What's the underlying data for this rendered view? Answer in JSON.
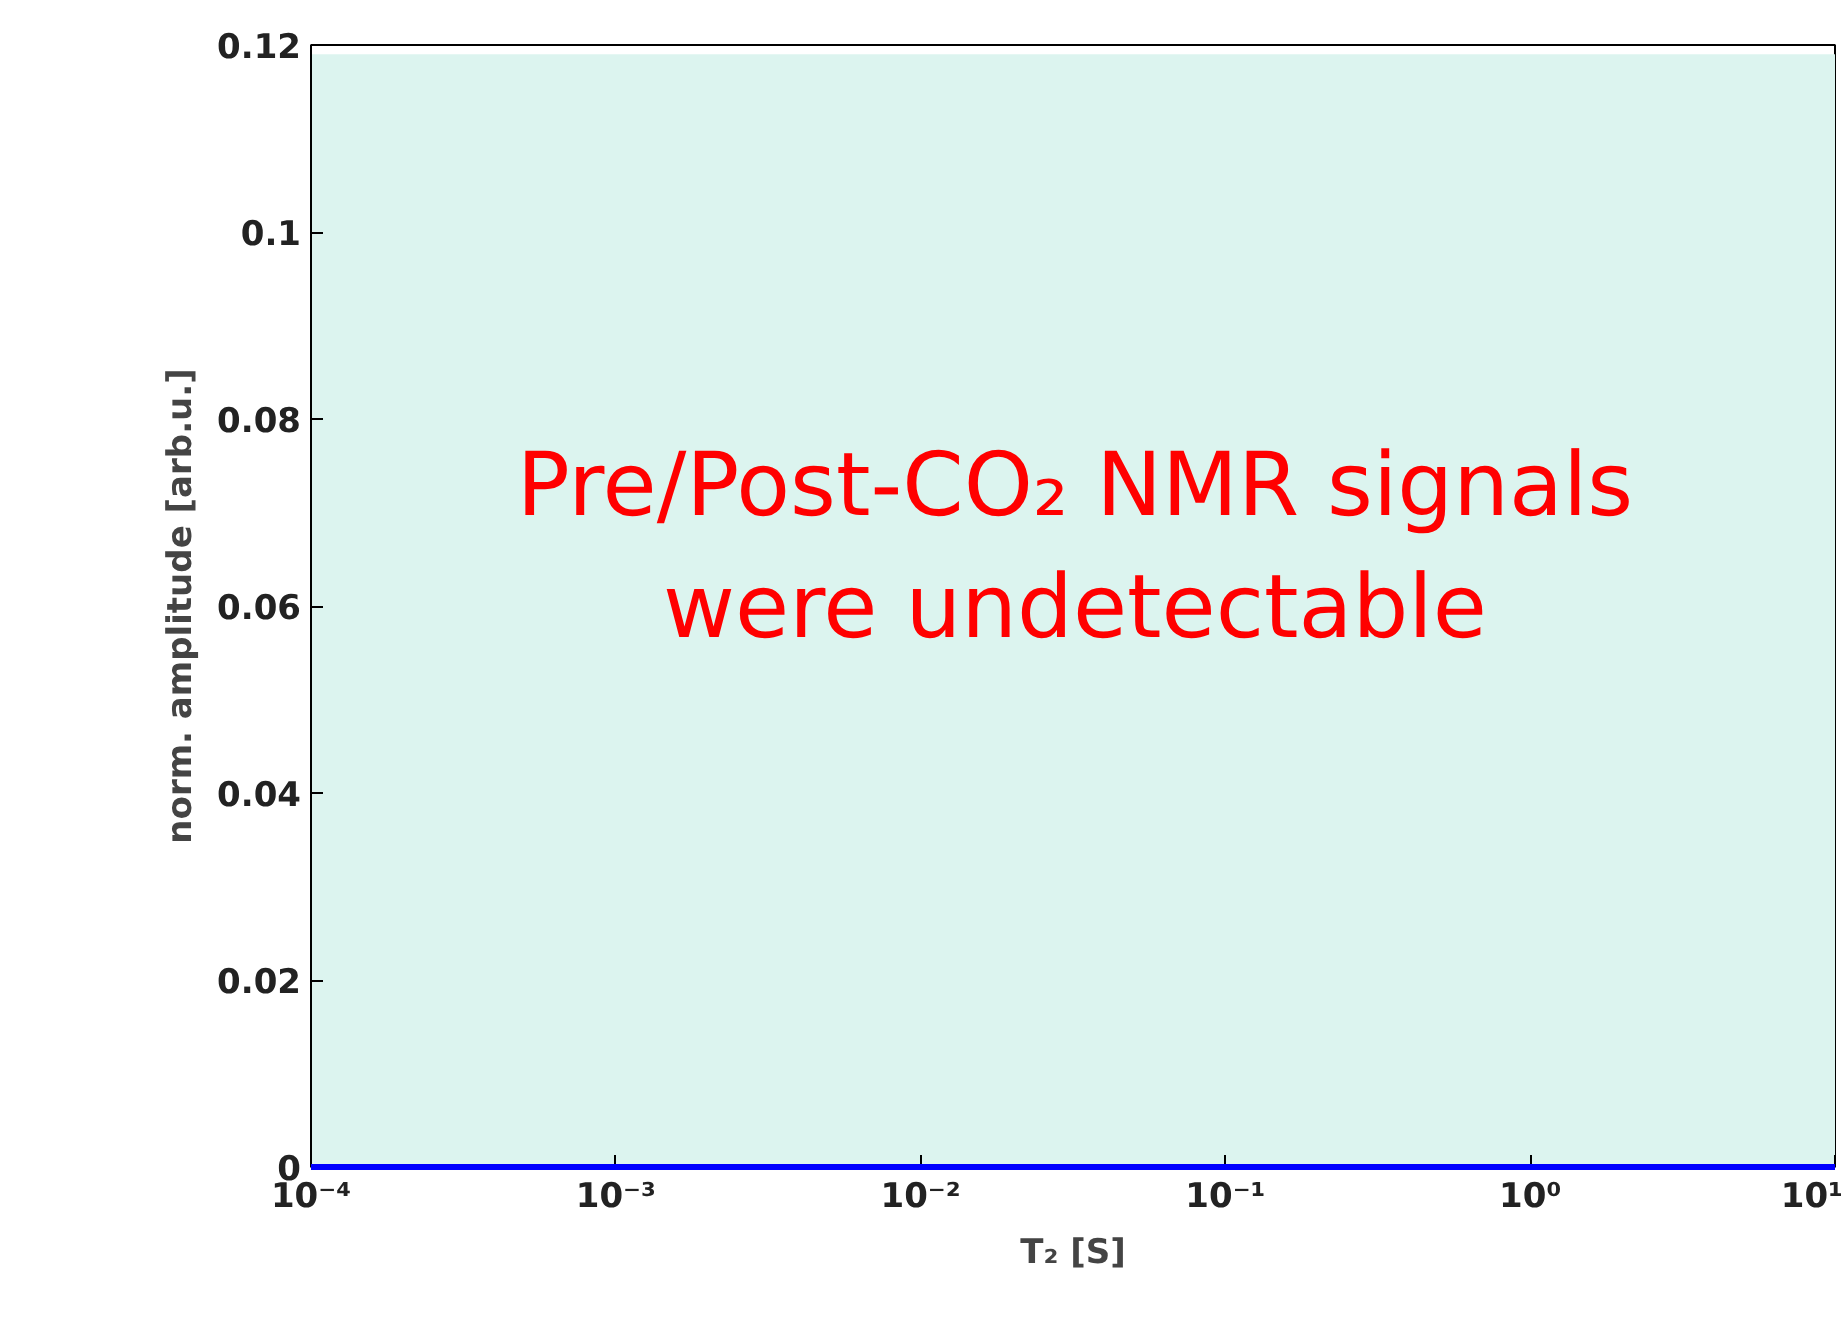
{
  "chart_data": {
    "type": "line",
    "xlabel": "T₂ [S]",
    "ylabel": "norm. amplitude [arb.u.]",
    "x": [
      0.0001,
      10
    ],
    "series": [
      {
        "color": "#0000ff",
        "values": [
          0,
          0
        ]
      }
    ],
    "log": "x",
    "xlim": [
      0.0001,
      10
    ],
    "ylim": [
      0,
      0.12
    ],
    "xticks": [
      {
        "value": 0.0001,
        "label": "10⁻⁴"
      },
      {
        "value": 0.001,
        "label": "10⁻³"
      },
      {
        "value": 0.01,
        "label": "10⁻²"
      },
      {
        "value": 0.1,
        "label": "10⁻¹"
      },
      {
        "value": 1,
        "label": "10⁰"
      },
      {
        "value": 10,
        "label": "10¹"
      }
    ],
    "yticks": [
      0,
      0.02,
      0.04,
      0.06,
      0.08,
      0.1,
      0.12
    ],
    "bands": [
      {
        "axis": "y",
        "from": 0,
        "to": 0.119,
        "color": "#dcf4ef"
      }
    ],
    "annotations": [
      "Pre/Post-CO₂ NMR signals\nwere undetectable"
    ],
    "grid": false,
    "line_style": "solid"
  }
}
